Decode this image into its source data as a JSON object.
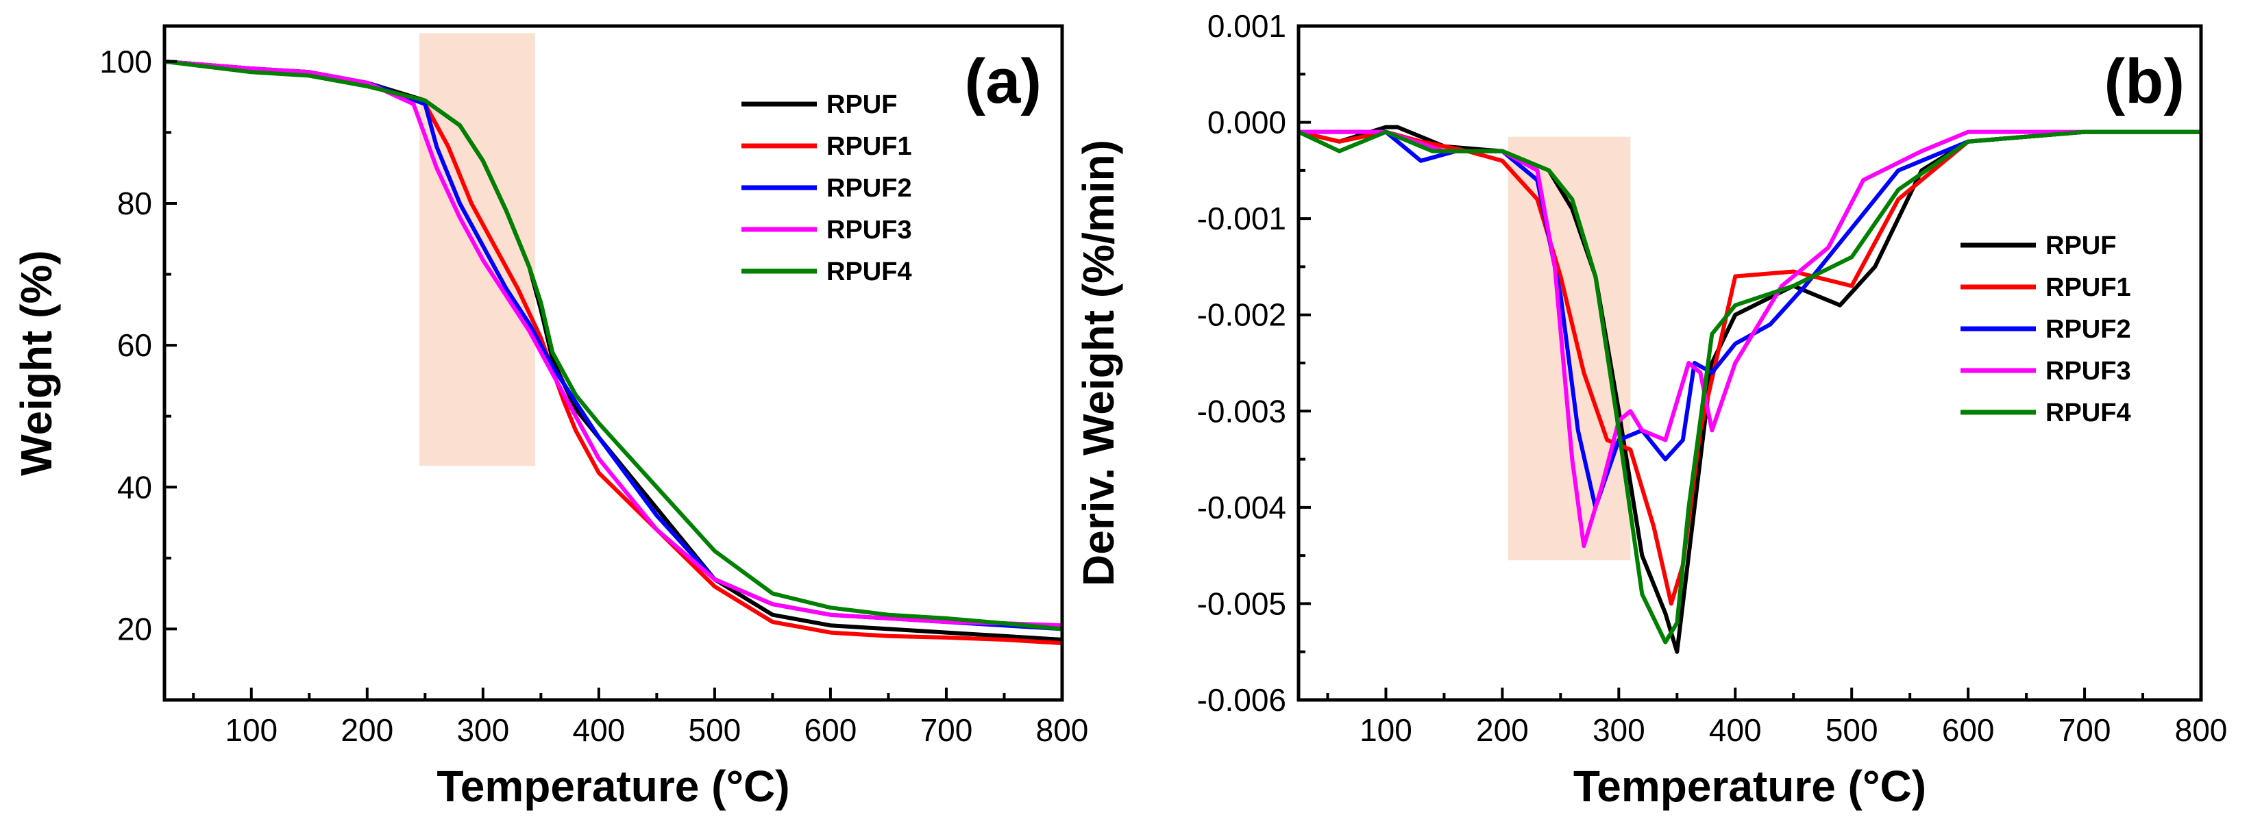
{
  "chart_data": [
    {
      "panel": "a",
      "panel_label": "(a)",
      "type": "line",
      "xlabel": "Temperature (°C)",
      "ylabel": "Weight (%)",
      "xlim": [
        25,
        800
      ],
      "ylim": [
        10,
        105
      ],
      "xticks": [
        100,
        200,
        300,
        400,
        500,
        600,
        700,
        800
      ],
      "yticks": [
        20,
        40,
        60,
        80,
        100
      ],
      "xtick_labels": [
        "100",
        "200",
        "300",
        "400",
        "500",
        "600",
        "700",
        "800"
      ],
      "ytick_labels": [
        "20",
        "40",
        "60",
        "80",
        "100"
      ],
      "highlight_region": {
        "x": [
          245,
          345
        ],
        "y": [
          43,
          104
        ]
      },
      "legend": {
        "position": "top-right"
      },
      "series": [
        {
          "name": "RPUF",
          "color": "#000000",
          "x": [
            25,
            100,
            150,
            200,
            250,
            280,
            300,
            320,
            340,
            350,
            360,
            380,
            400,
            450,
            500,
            550,
            600,
            650,
            700,
            750,
            800
          ],
          "y": [
            100,
            99,
            98.5,
            97,
            94.5,
            91,
            86,
            79,
            71,
            65,
            58,
            51,
            47,
            37,
            27,
            22,
            20.5,
            20,
            19.5,
            19,
            18.5
          ]
        },
        {
          "name": "RPUF1",
          "color": "#ff0000",
          "x": [
            25,
            100,
            150,
            200,
            250,
            270,
            290,
            310,
            330,
            350,
            370,
            380,
            400,
            450,
            500,
            550,
            600,
            650,
            700,
            750,
            800
          ],
          "y": [
            100,
            99,
            98.5,
            97,
            94,
            88,
            80,
            74,
            68,
            61,
            52,
            48,
            42,
            34,
            26,
            21,
            19.5,
            19,
            18.8,
            18.5,
            18
          ]
        },
        {
          "name": "RPUF2",
          "color": "#0000ff",
          "x": [
            25,
            100,
            150,
            200,
            250,
            260,
            280,
            300,
            320,
            340,
            360,
            380,
            400,
            450,
            500,
            550,
            600,
            650,
            700,
            750,
            800
          ],
          "y": [
            100,
            99,
            98.5,
            97,
            94,
            88,
            80,
            74,
            68,
            63,
            57,
            52,
            47,
            36,
            27,
            23.5,
            22,
            21.5,
            21,
            20.5,
            20
          ]
        },
        {
          "name": "RPUF3",
          "color": "#ff00ff",
          "x": [
            25,
            100,
            150,
            200,
            240,
            260,
            280,
            300,
            320,
            340,
            360,
            380,
            400,
            450,
            500,
            550,
            600,
            650,
            700,
            750,
            800
          ],
          "y": [
            100,
            99,
            98.5,
            97,
            94,
            85,
            78,
            72,
            67,
            62,
            56,
            50,
            44,
            34,
            27,
            23.5,
            22,
            21.5,
            21,
            20.8,
            20.5
          ]
        },
        {
          "name": "RPUF4",
          "color": "#008000",
          "x": [
            25,
            100,
            150,
            200,
            250,
            280,
            300,
            320,
            340,
            350,
            360,
            380,
            400,
            450,
            500,
            550,
            600,
            650,
            700,
            750,
            800
          ],
          "y": [
            100,
            98.5,
            98,
            96.5,
            94.5,
            91,
            86,
            79,
            71,
            66,
            59,
            53,
            49,
            40,
            31,
            25,
            23,
            22,
            21.5,
            20.8,
            20
          ]
        }
      ]
    },
    {
      "panel": "b",
      "panel_label": "(b)",
      "type": "line",
      "xlabel": "Temperature (°C)",
      "ylabel": "Deriv. Weight (%/min)",
      "xlim": [
        25,
        800
      ],
      "ylim": [
        -0.006,
        0.001
      ],
      "xticks": [
        100,
        200,
        300,
        400,
        500,
        600,
        700,
        800
      ],
      "yticks": [
        -0.006,
        -0.005,
        -0.004,
        -0.003,
        -0.002,
        -0.001,
        0.0,
        0.001
      ],
      "xtick_labels": [
        "100",
        "200",
        "300",
        "400",
        "500",
        "600",
        "700",
        "800"
      ],
      "ytick_labels": [
        "-0.006",
        "-0.005",
        "-0.004",
        "-0.003",
        "-0.002",
        "-0.001",
        "0.000",
        "0.001"
      ],
      "highlight_region": {
        "x": [
          205,
          310
        ],
        "y": [
          -0.00455,
          -0.00015
        ]
      },
      "legend": {
        "position": "right"
      },
      "series": [
        {
          "name": "RPUF",
          "color": "#000000",
          "x": [
            25,
            60,
            100,
            110,
            150,
            200,
            240,
            260,
            280,
            300,
            320,
            340,
            350,
            360,
            380,
            400,
            450,
            490,
            520,
            560,
            600,
            700,
            800
          ],
          "y": [
            -0.0001,
            -0.0002,
            -5e-05,
            -5e-05,
            -0.00025,
            -0.0003,
            -0.0005,
            -0.0009,
            -0.0016,
            -0.003,
            -0.0045,
            -0.0051,
            -0.0055,
            -0.0045,
            -0.0025,
            -0.002,
            -0.0017,
            -0.0019,
            -0.0015,
            -0.0005,
            -0.0002,
            -0.0001,
            -0.0001
          ]
        },
        {
          "name": "RPUF1",
          "color": "#ff0000",
          "x": [
            25,
            60,
            100,
            130,
            170,
            200,
            230,
            250,
            270,
            290,
            310,
            330,
            345,
            355,
            370,
            400,
            450,
            500,
            540,
            600,
            700,
            800
          ],
          "y": [
            -0.0001,
            -0.0002,
            -0.0001,
            -0.0002,
            -0.0003,
            -0.0004,
            -0.0008,
            -0.0016,
            -0.0026,
            -0.0033,
            -0.0034,
            -0.0042,
            -0.005,
            -0.0046,
            -0.0032,
            -0.0016,
            -0.00155,
            -0.0017,
            -0.0008,
            -0.0002,
            -0.0001,
            -0.0001
          ]
        },
        {
          "name": "RPUF2",
          "color": "#0000ff",
          "x": [
            25,
            100,
            130,
            160,
            200,
            230,
            250,
            265,
            280,
            300,
            320,
            340,
            355,
            365,
            380,
            400,
            430,
            460,
            500,
            540,
            600,
            700,
            800
          ],
          "y": [
            -0.0001,
            -0.0001,
            -0.0004,
            -0.0003,
            -0.0003,
            -0.0006,
            -0.0018,
            -0.0032,
            -0.004,
            -0.0033,
            -0.0032,
            -0.0035,
            -0.0033,
            -0.0025,
            -0.0026,
            -0.0023,
            -0.0021,
            -0.0017,
            -0.0011,
            -0.0005,
            -0.0002,
            -0.0001,
            -0.0001
          ]
        },
        {
          "name": "RPUF3",
          "color": "#ff00ff",
          "x": [
            25,
            100,
            150,
            200,
            230,
            245,
            260,
            270,
            285,
            300,
            310,
            320,
            340,
            360,
            370,
            380,
            400,
            440,
            480,
            510,
            560,
            600,
            700,
            800
          ],
          "y": [
            -0.0001,
            -0.0001,
            -0.0003,
            -0.0003,
            -0.0005,
            -0.0015,
            -0.0035,
            -0.0044,
            -0.0038,
            -0.0031,
            -0.003,
            -0.0032,
            -0.0033,
            -0.0025,
            -0.0026,
            -0.0032,
            -0.0025,
            -0.0017,
            -0.0013,
            -0.0006,
            -0.0003,
            -0.0001,
            -0.0001,
            -0.0001
          ]
        },
        {
          "name": "RPUF4",
          "color": "#008000",
          "x": [
            25,
            60,
            100,
            140,
            200,
            240,
            260,
            280,
            300,
            320,
            340,
            350,
            360,
            380,
            400,
            450,
            500,
            540,
            600,
            700,
            800
          ],
          "y": [
            -0.0001,
            -0.0003,
            -0.0001,
            -0.0003,
            -0.0003,
            -0.0005,
            -0.0008,
            -0.0016,
            -0.0032,
            -0.0049,
            -0.0054,
            -0.0052,
            -0.004,
            -0.0022,
            -0.0019,
            -0.0017,
            -0.0014,
            -0.0007,
            -0.0002,
            -0.0001,
            -0.0001
          ]
        }
      ]
    }
  ]
}
